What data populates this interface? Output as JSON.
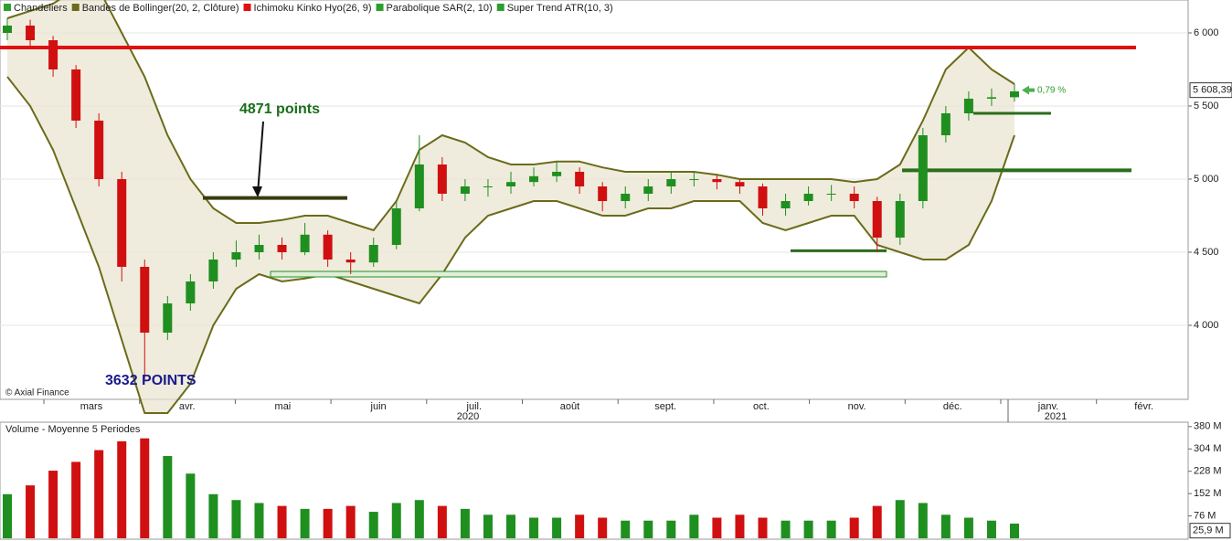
{
  "chart_data": [
    {
      "type": "candlestick",
      "legend": [
        {
          "name": "Chandeliers",
          "color": "#2e9e2e"
        },
        {
          "name": "Bandes de Bollinger(20, 2, Clôture)",
          "color": "#6b6b1a"
        },
        {
          "name": "Ichimoku Kinko Hyo(26, 9)",
          "color": "#e01010"
        },
        {
          "name": "Parabolique SAR(2, 10)",
          "color": "#2e9e2e"
        },
        {
          "name": "Super Trend ATR(10, 3)",
          "color": "#2e9e2e"
        }
      ],
      "up_color": "#1f8f1f",
      "down_color": "#d01010",
      "open": [
        6000,
        6050,
        5950,
        5750,
        5400,
        5000,
        4400,
        3950,
        4150,
        4300,
        4450,
        4500,
        4550,
        4500,
        4620,
        4450,
        4430,
        4550,
        4800,
        5100,
        4900,
        4950,
        4950,
        4980,
        5020,
        5050,
        4950,
        4850,
        4900,
        4950,
        5000,
        5000,
        4980,
        4950,
        4800,
        4850,
        4900,
        4900,
        4850,
        4600,
        4850,
        5300,
        5450,
        5550,
        5560
      ],
      "high": [
        6100,
        6090,
        5980,
        5780,
        5450,
        5050,
        4450,
        4200,
        4350,
        4500,
        4580,
        4620,
        4600,
        4700,
        4650,
        4500,
        4600,
        4850,
        5300,
        5150,
        5000,
        5000,
        5050,
        5080,
        5120,
        5080,
        4980,
        4950,
        5000,
        5050,
        5050,
        5030,
        5000,
        4970,
        4900,
        4950,
        4960,
        4950,
        4880,
        4900,
        5350,
        5500,
        5600,
        5620,
        5650
      ],
      "low": [
        5950,
        5900,
        5700,
        5350,
        4950,
        4300,
        3632,
        3900,
        4100,
        4250,
        4400,
        4450,
        4450,
        4480,
        4400,
        4350,
        4400,
        4520,
        4780,
        4850,
        4850,
        4880,
        4900,
        4950,
        4980,
        4900,
        4780,
        4800,
        4850,
        4900,
        4950,
        4930,
        4900,
        4750,
        4750,
        4820,
        4850,
        4800,
        4500,
        4550,
        4800,
        5250,
        5400,
        5500,
        5530
      ],
      "close": [
        6050,
        5950,
        5750,
        5400,
        5000,
        4400,
        3950,
        4150,
        4300,
        4450,
        4500,
        4550,
        4500,
        4620,
        4450,
        4430,
        4550,
        4800,
        5100,
        4900,
        4950,
        4950,
        4980,
        5020,
        5050,
        4950,
        4850,
        4900,
        4950,
        5000,
        5000,
        4980,
        4950,
        4800,
        4850,
        4900,
        4900,
        4850,
        4600,
        4850,
        5300,
        5450,
        5550,
        5560,
        5600
      ],
      "bollinger_upper": [
        6100,
        6150,
        6200,
        6300,
        6300,
        6000,
        5700,
        5300,
        5000,
        4800,
        4700,
        4700,
        4720,
        4750,
        4750,
        4700,
        4650,
        4850,
        5200,
        5300,
        5250,
        5150,
        5100,
        5100,
        5120,
        5120,
        5080,
        5050,
        5050,
        5050,
        5050,
        5030,
        5000,
        5000,
        5000,
        5000,
        5000,
        4980,
        5000,
        5100,
        5400,
        5750,
        5900,
        5750,
        5650
      ],
      "bollinger_lower": [
        5700,
        5500,
        5200,
        4800,
        4400,
        3900,
        3400,
        3400,
        3600,
        4000,
        4250,
        4350,
        4300,
        4320,
        4350,
        4300,
        4250,
        4200,
        4150,
        4350,
        4600,
        4750,
        4800,
        4850,
        4850,
        4800,
        4750,
        4750,
        4800,
        4800,
        4850,
        4850,
        4850,
        4700,
        4650,
        4700,
        4750,
        4750,
        4550,
        4500,
        4450,
        4450,
        4550,
        4850,
        5300
      ],
      "bollinger_color": "#6b6b1a",
      "band_fill": "#e8e4cf",
      "levels": [
        {
          "value": 5900,
          "color": "#e01010"
        },
        {
          "value": 4871,
          "color": "#3a3a10"
        },
        {
          "value": 5060,
          "color": "#2a6e1a"
        },
        {
          "value": 5450,
          "color": "#2a6e1a"
        },
        {
          "value": 4510,
          "color": "#2a6e1a"
        },
        {
          "value": 4350,
          "color": "#2a8e2a"
        }
      ],
      "ylim": [
        3500,
        6225
      ],
      "yticks": [
        {
          "value": 4000,
          "label": "4 000"
        },
        {
          "value": 4500,
          "label": "4 500"
        },
        {
          "value": 5000,
          "label": "5 000"
        },
        {
          "value": 5500,
          "label": "5 500"
        },
        {
          "value": 6000,
          "label": "6 000"
        }
      ],
      "months": [
        "mars",
        "avr.",
        "mai",
        "juin",
        "juil.",
        "août",
        "sept.",
        "oct.",
        "nov.",
        "déc.",
        "janv.",
        "févr."
      ],
      "years": [
        "2020",
        "2021"
      ],
      "last_price": {
        "value": 5608.39,
        "label": "5 608,39"
      },
      "change_label": "0,79 %",
      "annotations": [
        "4871 points",
        "3632 POINTS"
      ],
      "credit": "© Axial Finance"
    },
    {
      "type": "bar",
      "title": "Volume  - Moyenne 5 Periodes",
      "values": [
        150,
        180,
        230,
        260,
        300,
        330,
        340,
        280,
        220,
        150,
        130,
        120,
        110,
        100,
        100,
        110,
        90,
        120,
        130,
        110,
        100,
        80,
        80,
        70,
        70,
        80,
        70,
        60,
        60,
        60,
        80,
        70,
        80,
        70,
        60,
        60,
        60,
        70,
        110,
        130,
        120,
        80,
        70,
        60,
        50
      ],
      "ylim": [
        0,
        395
      ],
      "yticks": [
        {
          "value": 76,
          "label": "76 M"
        },
        {
          "value": 152,
          "label": "152 M"
        },
        {
          "value": 228,
          "label": "228 M"
        },
        {
          "value": 304,
          "label": "304 M"
        },
        {
          "value": 380,
          "label": "380 M"
        }
      ],
      "last_volume": {
        "value": 25.9,
        "label": "25,9 M"
      }
    }
  ]
}
